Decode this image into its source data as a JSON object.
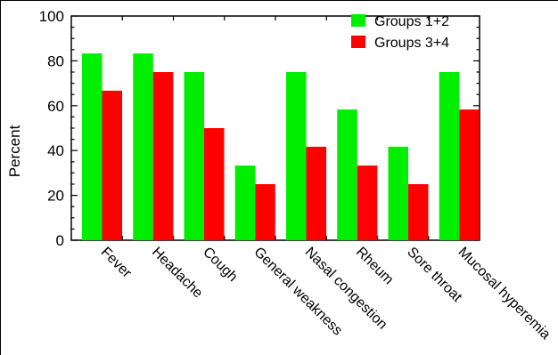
{
  "chart_data": {
    "type": "bar",
    "title": "",
    "xlabel": "",
    "ylabel": "Percent",
    "ylim": [
      0,
      100
    ],
    "yticks": [
      0,
      20,
      40,
      60,
      80,
      100
    ],
    "grid": false,
    "legend_position": "top-right",
    "categories": [
      "Fever",
      "Headache",
      "Cough",
      "General weakness",
      "Nasal congestion",
      "Rheum",
      "Sore throat",
      "Mucosal hyperemia"
    ],
    "series": [
      {
        "name": "Groups 1+2",
        "color": "#00ee00",
        "values": [
          83.3,
          83.3,
          75,
          33.3,
          75,
          58.3,
          41.7,
          75
        ]
      },
      {
        "name": "Groups 3+4",
        "color": "#ff0000",
        "values": [
          66.7,
          75,
          50,
          25,
          41.7,
          33.3,
          25,
          58.3
        ]
      }
    ]
  }
}
